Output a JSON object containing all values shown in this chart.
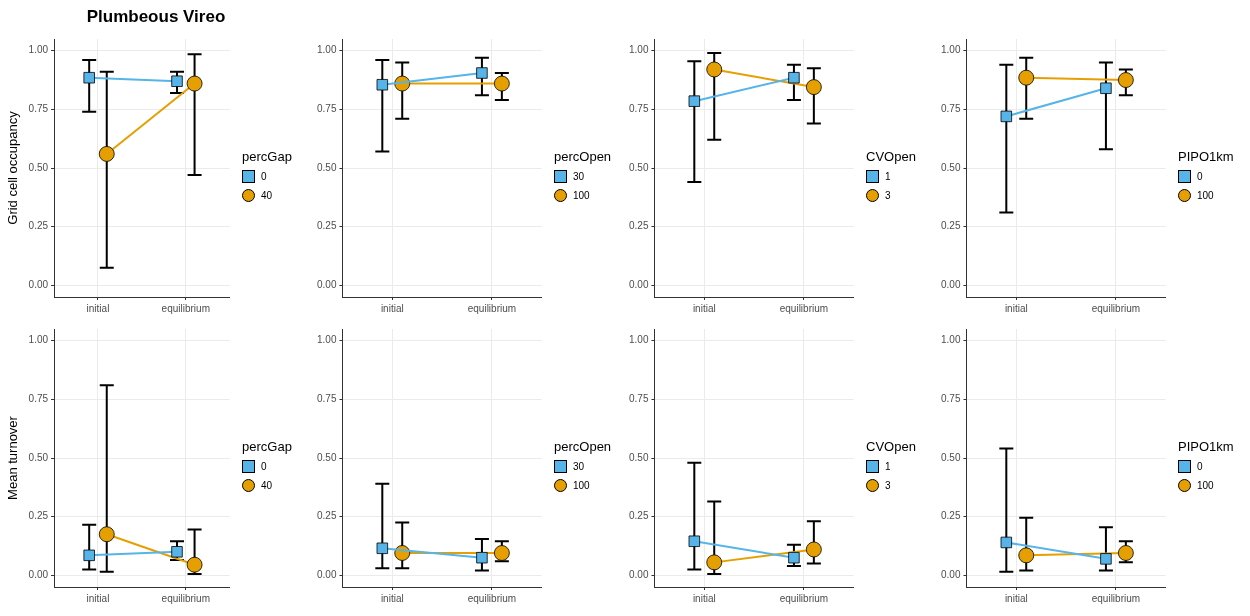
{
  "chart_data": [
    {
      "type": "line",
      "title": "Plumbeous Vireo",
      "ylabel": "Grid cell occupancy",
      "legend_title": "percGap",
      "categories": [
        "initial",
        "equilibrium"
      ],
      "ylim": [
        -0.05,
        1.05
      ],
      "yticks": [
        {
          "value": 0,
          "label": "0.00"
        },
        {
          "value": 0.25,
          "label": "0.25"
        },
        {
          "value": 0.5,
          "label": "0.50"
        },
        {
          "value": 0.75,
          "label": "0.75"
        },
        {
          "value": 1,
          "label": "1.00"
        }
      ],
      "grid": true,
      "legend": "right",
      "line_style": "solid",
      "series": [
        {
          "name": "0",
          "color": "#56b4e9",
          "marker": "square",
          "values": [
            0.885,
            0.87
          ],
          "errors": [
            [
              0.74,
              0.96
            ],
            [
              0.82,
              0.91
            ]
          ]
        },
        {
          "name": "40",
          "color": "#e69f00",
          "marker": "circle",
          "values": [
            0.56,
            0.86
          ],
          "errors": [
            [
              0.075,
              0.91
            ],
            [
              0.47,
              0.985
            ]
          ]
        }
      ]
    },
    {
      "type": "line",
      "legend_title": "percOpen",
      "categories": [
        "initial",
        "equilibrium"
      ],
      "ylim": [
        -0.05,
        1.05
      ],
      "yticks": [
        {
          "value": 0,
          "label": "0.00"
        },
        {
          "value": 0.25,
          "label": "0.25"
        },
        {
          "value": 0.5,
          "label": "0.50"
        },
        {
          "value": 0.75,
          "label": "0.75"
        },
        {
          "value": 1,
          "label": "1.00"
        }
      ],
      "grid": true,
      "legend": "right",
      "line_style": "solid",
      "series": [
        {
          "name": "30",
          "color": "#56b4e9",
          "marker": "square",
          "values": [
            0.855,
            0.905
          ],
          "errors": [
            [
              0.57,
              0.96
            ],
            [
              0.81,
              0.97
            ]
          ]
        },
        {
          "name": "100",
          "color": "#e69f00",
          "marker": "circle",
          "values": [
            0.86,
            0.86
          ],
          "errors": [
            [
              0.71,
              0.95
            ],
            [
              0.79,
              0.905
            ]
          ]
        }
      ]
    },
    {
      "type": "line",
      "legend_title": "CVOpen",
      "categories": [
        "initial",
        "equilibrium"
      ],
      "ylim": [
        -0.05,
        1.05
      ],
      "yticks": [
        {
          "value": 0,
          "label": "0.00"
        },
        {
          "value": 0.25,
          "label": "0.25"
        },
        {
          "value": 0.5,
          "label": "0.50"
        },
        {
          "value": 0.75,
          "label": "0.75"
        },
        {
          "value": 1,
          "label": "1.00"
        }
      ],
      "grid": true,
      "legend": "right",
      "line_style": "solid",
      "series": [
        {
          "name": "1",
          "color": "#56b4e9",
          "marker": "square",
          "values": [
            0.785,
            0.885
          ],
          "errors": [
            [
              0.44,
              0.955
            ],
            [
              0.79,
              0.94
            ]
          ]
        },
        {
          "name": "3",
          "color": "#e69f00",
          "marker": "circle",
          "values": [
            0.92,
            0.845
          ],
          "errors": [
            [
              0.62,
              0.99
            ],
            [
              0.69,
              0.925
            ]
          ]
        }
      ]
    },
    {
      "type": "line",
      "legend_title": "PIPO1km",
      "categories": [
        "initial",
        "equilibrium"
      ],
      "ylim": [
        -0.05,
        1.05
      ],
      "yticks": [
        {
          "value": 0,
          "label": "0.00"
        },
        {
          "value": 0.25,
          "label": "0.25"
        },
        {
          "value": 0.5,
          "label": "0.50"
        },
        {
          "value": 0.75,
          "label": "0.75"
        },
        {
          "value": 1,
          "label": "1.00"
        }
      ],
      "grid": true,
      "legend": "right",
      "line_style": "solid",
      "series": [
        {
          "name": "0",
          "color": "#56b4e9",
          "marker": "square",
          "values": [
            0.72,
            0.84
          ],
          "errors": [
            [
              0.31,
              0.94
            ],
            [
              0.58,
              0.95
            ]
          ]
        },
        {
          "name": "100",
          "color": "#e69f00",
          "marker": "circle",
          "values": [
            0.885,
            0.875
          ],
          "errors": [
            [
              0.71,
              0.97
            ],
            [
              0.81,
              0.92
            ]
          ]
        }
      ]
    },
    {
      "type": "line",
      "ylabel": "Mean turnover",
      "legend_title": "percGap",
      "categories": [
        "initial",
        "equilibrium"
      ],
      "ylim": [
        -0.05,
        1.05
      ],
      "yticks": [
        {
          "value": 0,
          "label": "0.00"
        },
        {
          "value": 0.25,
          "label": "0.25"
        },
        {
          "value": 0.5,
          "label": "0.50"
        },
        {
          "value": 0.75,
          "label": "0.75"
        },
        {
          "value": 1,
          "label": "1.00"
        }
      ],
      "grid": true,
      "legend": "right",
      "line_style": "solid",
      "series": [
        {
          "name": "0",
          "color": "#56b4e9",
          "marker": "square",
          "values": [
            0.085,
            0.1
          ],
          "errors": [
            [
              0.025,
              0.215
            ],
            [
              0.065,
              0.145
            ]
          ]
        },
        {
          "name": "40",
          "color": "#e69f00",
          "marker": "circle",
          "values": [
            0.175,
            0.045
          ],
          "errors": [
            [
              0.015,
              0.81
            ],
            [
              0.005,
              0.195
            ]
          ]
        }
      ]
    },
    {
      "type": "line",
      "legend_title": "percOpen",
      "categories": [
        "initial",
        "equilibrium"
      ],
      "ylim": [
        -0.05,
        1.05
      ],
      "yticks": [
        {
          "value": 0,
          "label": "0.00"
        },
        {
          "value": 0.25,
          "label": "0.25"
        },
        {
          "value": 0.5,
          "label": "0.50"
        },
        {
          "value": 0.75,
          "label": "0.75"
        },
        {
          "value": 1,
          "label": "1.00"
        }
      ],
      "grid": true,
      "legend": "right",
      "line_style": "solid",
      "series": [
        {
          "name": "30",
          "color": "#56b4e9",
          "marker": "square",
          "values": [
            0.115,
            0.075
          ],
          "errors": [
            [
              0.03,
              0.39
            ],
            [
              0.02,
              0.155
            ]
          ]
        },
        {
          "name": "100",
          "color": "#e69f00",
          "marker": "circle",
          "values": [
            0.095,
            0.095
          ],
          "errors": [
            [
              0.03,
              0.225
            ],
            [
              0.06,
              0.145
            ]
          ]
        }
      ]
    },
    {
      "type": "line",
      "legend_title": "CVOpen",
      "categories": [
        "initial",
        "equilibrium"
      ],
      "ylim": [
        -0.05,
        1.05
      ],
      "yticks": [
        {
          "value": 0,
          "label": "0.00"
        },
        {
          "value": 0.25,
          "label": "0.25"
        },
        {
          "value": 0.5,
          "label": "0.50"
        },
        {
          "value": 0.75,
          "label": "0.75"
        },
        {
          "value": 1,
          "label": "1.00"
        }
      ],
      "grid": true,
      "legend": "right",
      "line_style": "solid",
      "series": [
        {
          "name": "1",
          "color": "#56b4e9",
          "marker": "square",
          "values": [
            0.145,
            0.075
          ],
          "errors": [
            [
              0.025,
              0.48
            ],
            [
              0.04,
              0.13
            ]
          ]
        },
        {
          "name": "3",
          "color": "#e69f00",
          "marker": "circle",
          "values": [
            0.055,
            0.11
          ],
          "errors": [
            [
              0.005,
              0.315
            ],
            [
              0.05,
              0.23
            ]
          ]
        }
      ]
    },
    {
      "type": "line",
      "legend_title": "PIPO1km",
      "categories": [
        "initial",
        "equilibrium"
      ],
      "ylim": [
        -0.05,
        1.05
      ],
      "yticks": [
        {
          "value": 0,
          "label": "0.00"
        },
        {
          "value": 0.25,
          "label": "0.25"
        },
        {
          "value": 0.5,
          "label": "0.50"
        },
        {
          "value": 0.75,
          "label": "0.75"
        },
        {
          "value": 1,
          "label": "1.00"
        }
      ],
      "grid": true,
      "legend": "right",
      "line_style": "solid",
      "series": [
        {
          "name": "0",
          "color": "#56b4e9",
          "marker": "square",
          "values": [
            0.14,
            0.07
          ],
          "errors": [
            [
              0.015,
              0.54
            ],
            [
              0.02,
              0.205
            ]
          ]
        },
        {
          "name": "100",
          "color": "#e69f00",
          "marker": "circle",
          "values": [
            0.085,
            0.095
          ],
          "errors": [
            [
              0.02,
              0.245
            ],
            [
              0.055,
              0.145
            ]
          ]
        }
      ]
    }
  ]
}
